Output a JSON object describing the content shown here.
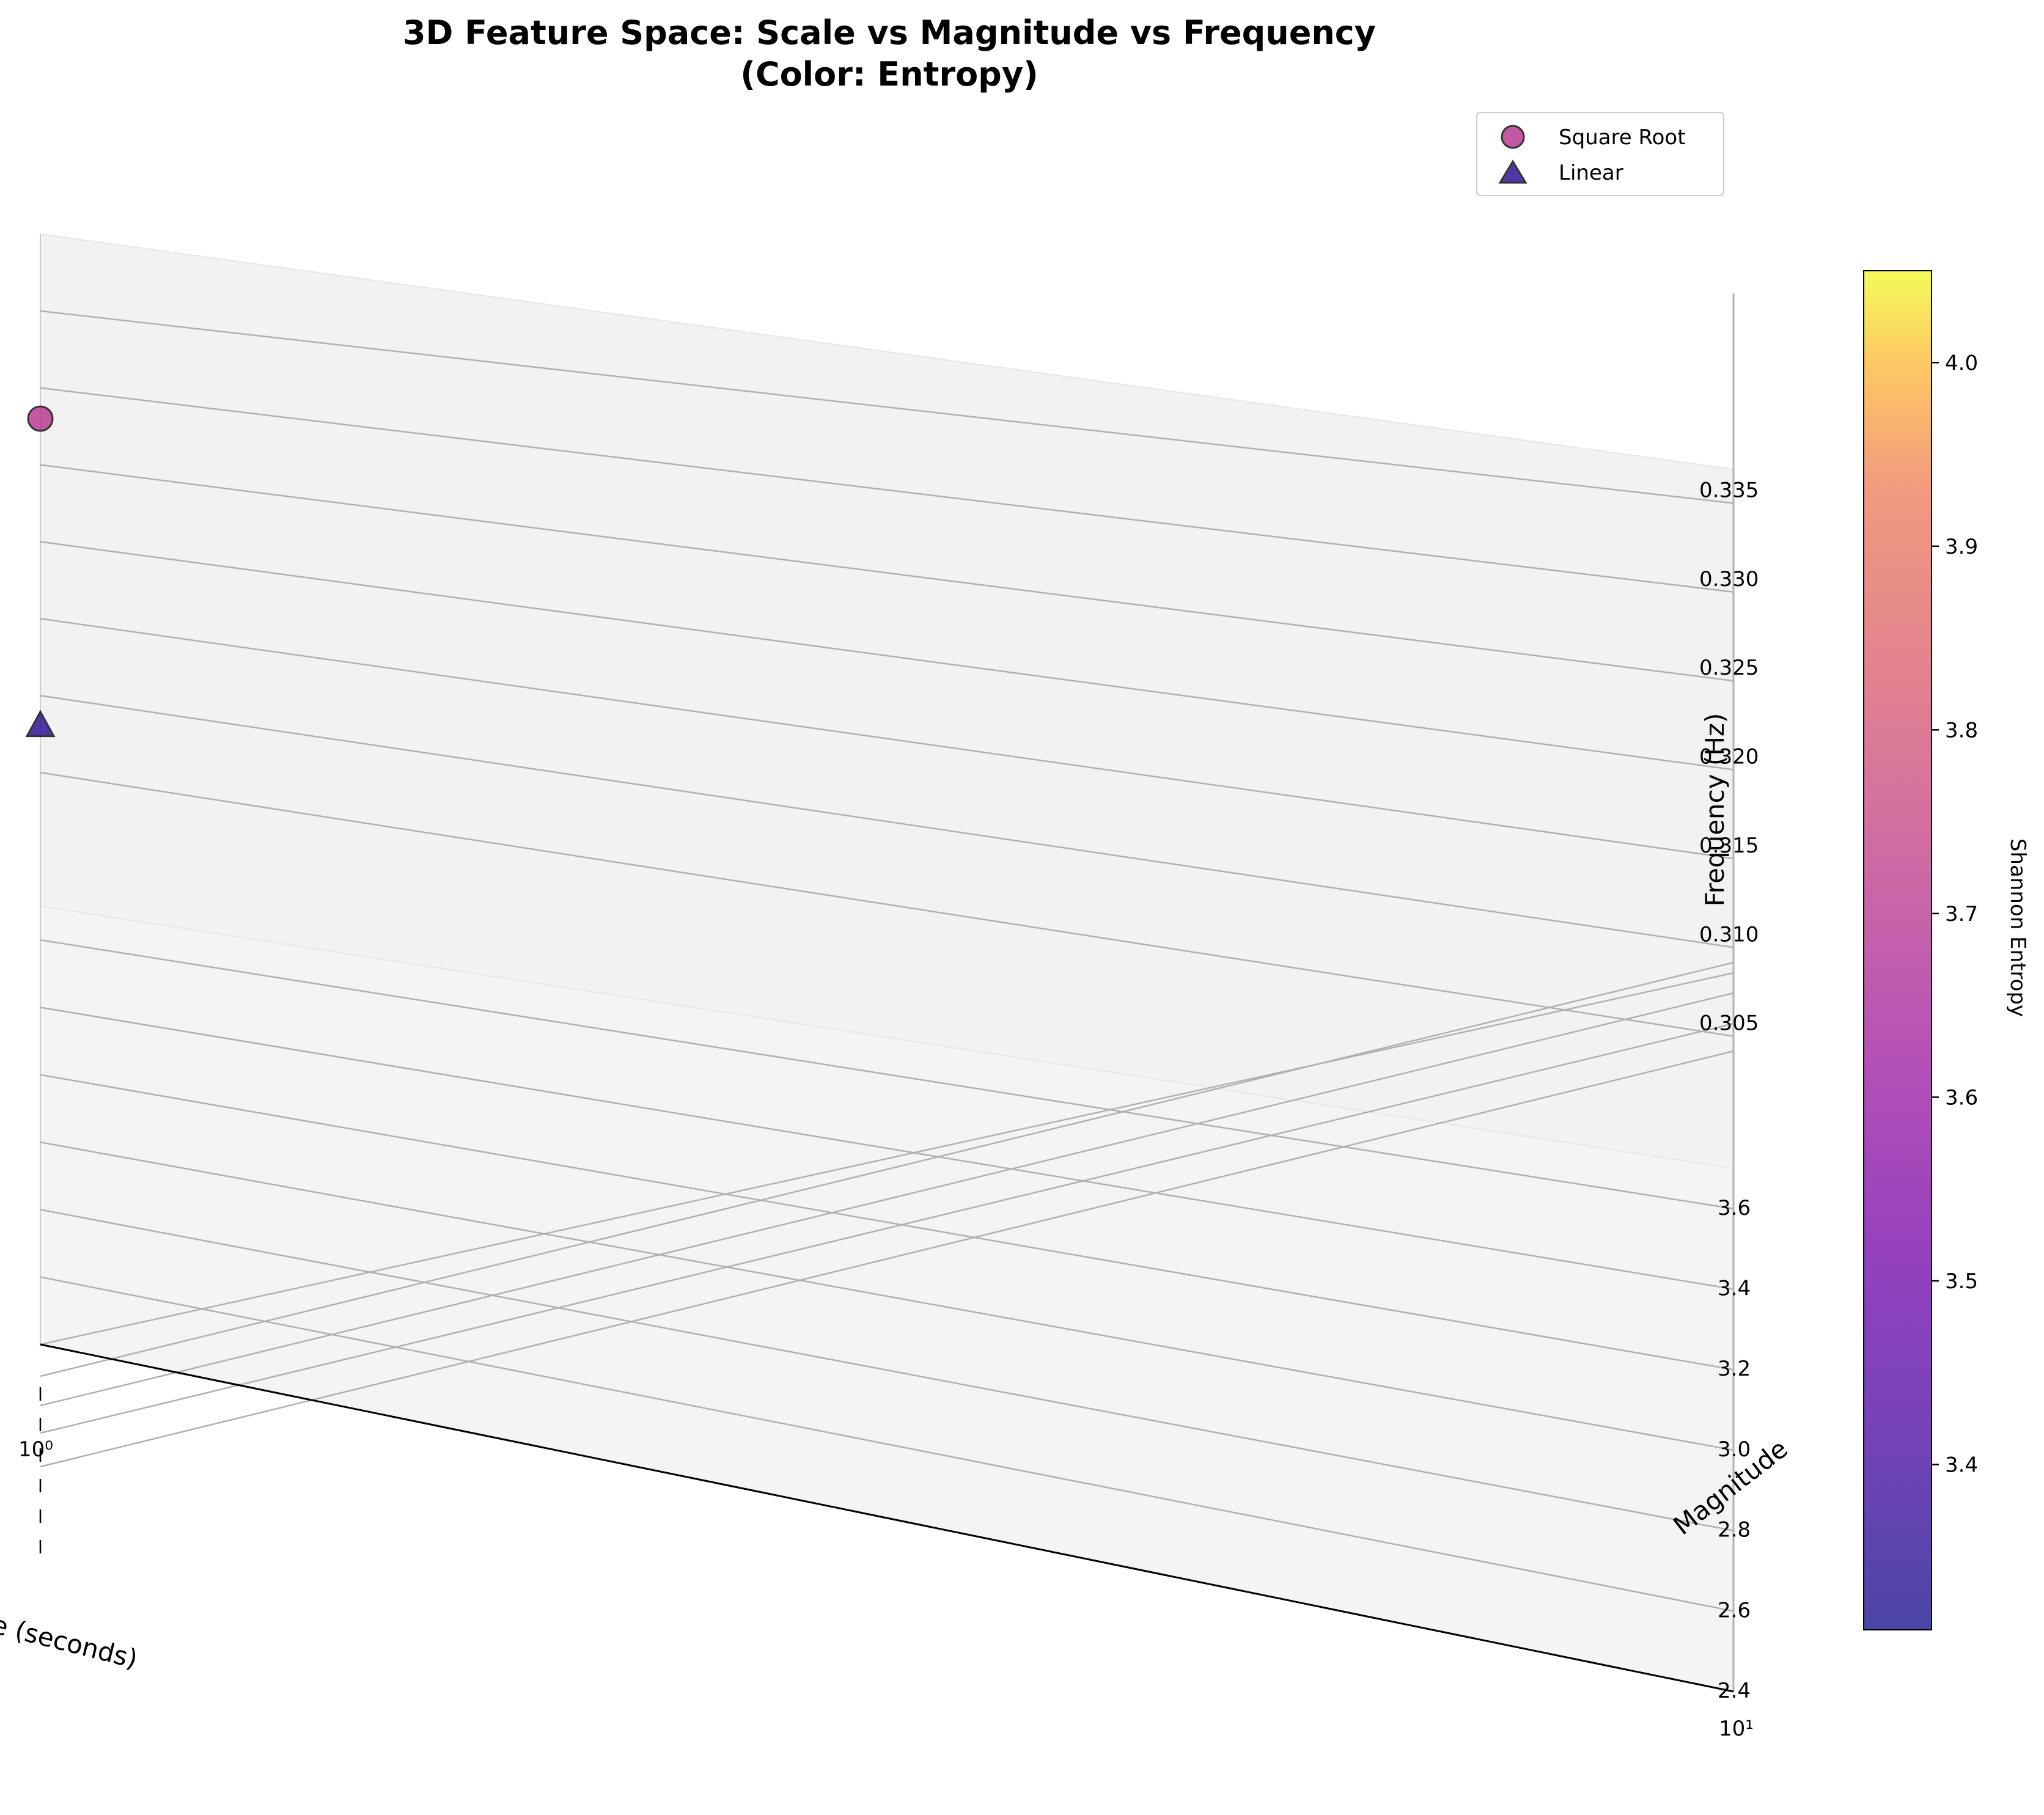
{
  "chart_data": {
    "type": "scatter",
    "projection": "3d",
    "title": "3D Feature Space: Scale vs Magnitude vs Frequency",
    "subtitle": "(Color: Entropy)",
    "xlabel": "Scale (seconds)",
    "ylabel": "Magnitude",
    "zlabel": "Frequency (Hz)",
    "xscale": "log",
    "xlim": [
      1,
      10
    ],
    "ylim": [
      2.4,
      3.7
    ],
    "zlim": [
      0.3,
      0.34
    ],
    "x_ticks": [
      "10⁰",
      "10¹"
    ],
    "y_ticks": [
      "2.4",
      "2.6",
      "2.8",
      "3.0",
      "3.2",
      "3.4",
      "3.6"
    ],
    "z_ticks": [
      "0.305",
      "0.310",
      "0.315",
      "0.320",
      "0.325",
      "0.330",
      "0.335"
    ],
    "grid": true,
    "legend_position": "top-right",
    "series": [
      {
        "name": "Square Root",
        "marker": "circle",
        "points": [
          {
            "x": 1,
            "y": 2.4,
            "z": 0.328,
            "entropy": 3.7
          }
        ]
      },
      {
        "name": "Linear",
        "marker": "triangle",
        "points": [
          {
            "x": 1,
            "y": 2.4,
            "z": 0.308,
            "entropy": 3.35
          }
        ]
      }
    ],
    "colorbar": {
      "label": "Shannon Entropy",
      "colormap": "plasma",
      "range": [
        3.31,
        4.05
      ],
      "ticks": [
        "3.4",
        "3.5",
        "3.6",
        "3.7",
        "3.8",
        "3.9",
        "4.0"
      ]
    }
  }
}
